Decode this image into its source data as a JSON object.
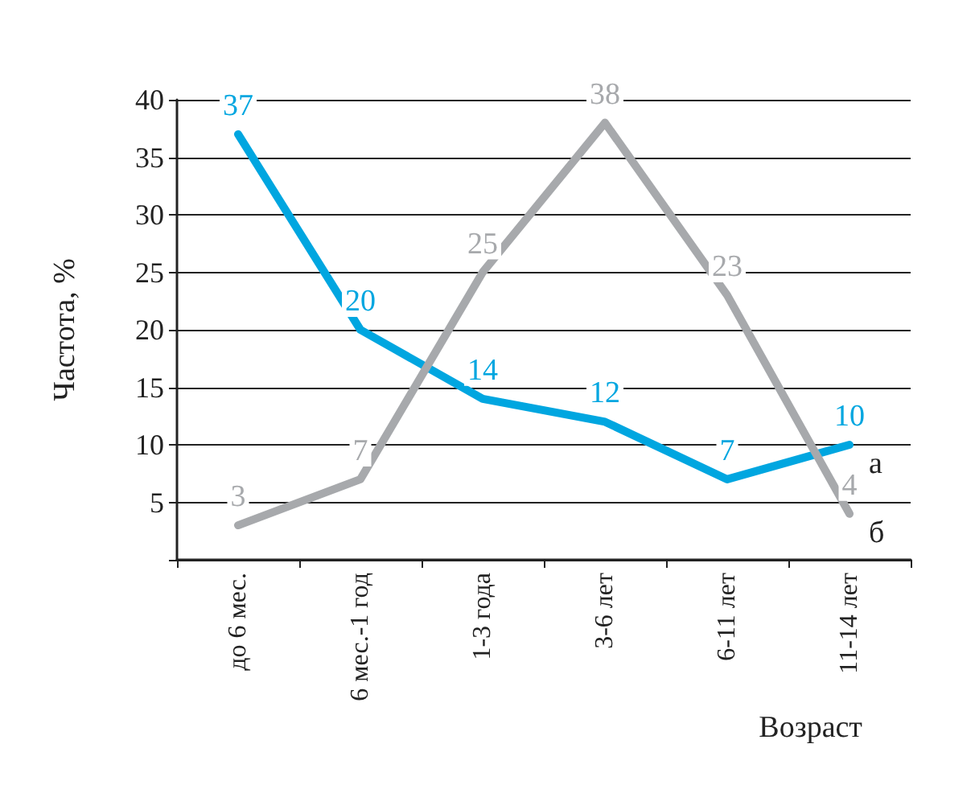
{
  "chart_data": {
    "type": "line",
    "xlabel": "Возраст",
    "ylabel": "Частота, %",
    "categories": [
      "до 6 мес.",
      "6 мес.-1 год",
      "1-3 года",
      "3-6 лет",
      "6-11 лет",
      "11-14 лет"
    ],
    "series": [
      {
        "name": "а",
        "color": "#00a6e0",
        "values": [
          37,
          20,
          14,
          12,
          7,
          10
        ]
      },
      {
        "name": "б",
        "color": "#a7a9ac",
        "values": [
          3,
          7,
          25,
          38,
          23,
          4
        ]
      }
    ],
    "ylim": [
      0,
      40
    ],
    "yticks": [
      {
        "value": 0,
        "label": null
      },
      5,
      10,
      15,
      20,
      25,
      30,
      35,
      40
    ],
    "grid": "y",
    "data_labels": true,
    "marker": "none",
    "line_style": "solid"
  }
}
